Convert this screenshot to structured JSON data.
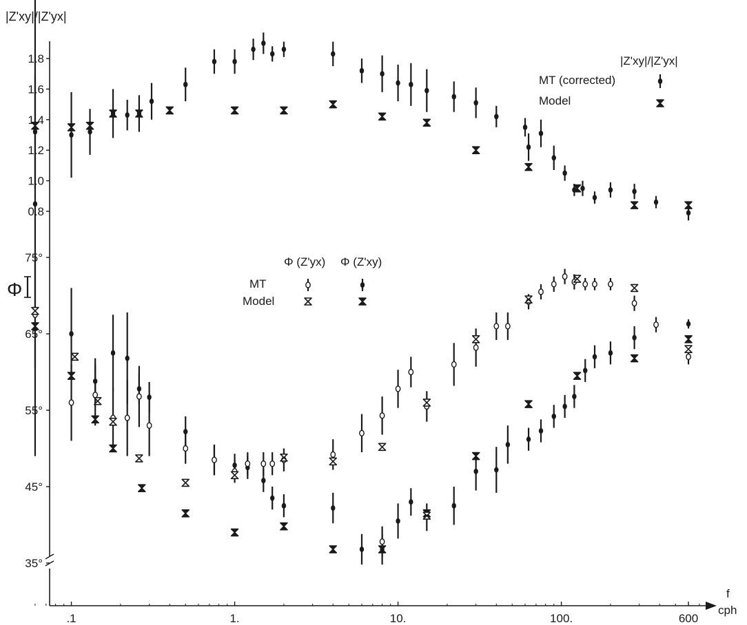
{
  "colors": {
    "ink": "#1a1a1a",
    "paper": "#ffffff"
  },
  "chart_data": [
    {
      "type": "scatter",
      "title": "",
      "ylabel": "|Z'xy|/|Z'yx|",
      "xlabel": "f / cph",
      "xscale": "log",
      "xlim": [
        0.055,
        750
      ],
      "ylim": [
        0.75,
        2.0
      ],
      "x_ticks": [
        0.1,
        1,
        10,
        100,
        600
      ],
      "x_tick_labels": [
        ".1",
        "1.",
        "10.",
        "100.",
        "600"
      ],
      "y_ticks": [
        0.8,
        1.0,
        1.2,
        1.4,
        1.6,
        1.8
      ],
      "y_tick_labels": [
        "0.8",
        "1.0",
        "1.2",
        "1.4",
        "1.6",
        "1.8"
      ],
      "legend_title": "|Z'xy|/|Z'yx|",
      "legend_position": "top-right",
      "series": [
        {
          "name": "MT (corrected)",
          "marker": "filled-dot-errorbar",
          "points": [
            {
              "x": 0.06,
              "y": 1.32,
              "e": 0.37
            },
            {
              "x": 0.1,
              "y": 1.3,
              "e": 0.28
            },
            {
              "x": 0.13,
              "y": 1.32,
              "e": 0.15
            },
            {
              "x": 0.18,
              "y": 1.44,
              "e": 0.16
            },
            {
              "x": 0.22,
              "y": 1.43,
              "e": 0.1
            },
            {
              "x": 0.26,
              "y": 1.44,
              "e": 0.12
            },
            {
              "x": 0.31,
              "y": 1.52,
              "e": 0.12
            },
            {
              "x": 0.5,
              "y": 1.63,
              "e": 0.11
            },
            {
              "x": 0.75,
              "y": 1.78,
              "e": 0.08
            },
            {
              "x": 1.0,
              "y": 1.78,
              "e": 0.08
            },
            {
              "x": 1.3,
              "y": 1.86,
              "e": 0.07
            },
            {
              "x": 1.5,
              "y": 1.9,
              "e": 0.07
            },
            {
              "x": 1.7,
              "y": 1.83,
              "e": 0.05
            },
            {
              "x": 2.0,
              "y": 1.86,
              "e": 0.05
            },
            {
              "x": 4.0,
              "y": 1.83,
              "e": 0.08
            },
            {
              "x": 6.0,
              "y": 1.72,
              "e": 0.08
            },
            {
              "x": 8.0,
              "y": 1.7,
              "e": 0.12
            },
            {
              "x": 10,
              "y": 1.64,
              "e": 0.12
            },
            {
              "x": 12,
              "y": 1.63,
              "e": 0.14
            },
            {
              "x": 15,
              "y": 1.59,
              "e": 0.14
            },
            {
              "x": 22,
              "y": 1.55,
              "e": 0.1
            },
            {
              "x": 30,
              "y": 1.51,
              "e": 0.1
            },
            {
              "x": 40,
              "y": 1.42,
              "e": 0.07
            },
            {
              "x": 60,
              "y": 1.35,
              "e": 0.06
            },
            {
              "x": 63,
              "y": 1.22,
              "e": 0.09
            },
            {
              "x": 75,
              "y": 1.31,
              "e": 0.09
            },
            {
              "x": 90,
              "y": 1.15,
              "e": 0.08
            },
            {
              "x": 105,
              "y": 1.05,
              "e": 0.05
            },
            {
              "x": 120,
              "y": 0.94,
              "e": 0.04
            },
            {
              "x": 135,
              "y": 0.95,
              "e": 0.05
            },
            {
              "x": 160,
              "y": 0.89,
              "e": 0.04
            },
            {
              "x": 200,
              "y": 0.94,
              "e": 0.05
            },
            {
              "x": 280,
              "y": 0.93,
              "e": 0.05
            },
            {
              "x": 380,
              "y": 0.86,
              "e": 0.04
            },
            {
              "x": 600,
              "y": 0.79,
              "e": 0.05
            }
          ]
        },
        {
          "name": "Model",
          "marker": "hourglass",
          "points": [
            {
              "x": 0.06,
              "y": 1.36
            },
            {
              "x": 0.1,
              "y": 1.35
            },
            {
              "x": 0.13,
              "y": 1.36
            },
            {
              "x": 0.18,
              "y": 1.44
            },
            {
              "x": 0.26,
              "y": 1.44
            },
            {
              "x": 0.4,
              "y": 1.46
            },
            {
              "x": 1.0,
              "y": 1.46
            },
            {
              "x": 2.0,
              "y": 1.46
            },
            {
              "x": 4.0,
              "y": 1.5
            },
            {
              "x": 8.0,
              "y": 1.42
            },
            {
              "x": 15,
              "y": 1.38
            },
            {
              "x": 30,
              "y": 1.2
            },
            {
              "x": 63,
              "y": 1.09
            },
            {
              "x": 125,
              "y": 0.95
            },
            {
              "x": 280,
              "y": 0.84
            },
            {
              "x": 600,
              "y": 0.84
            }
          ]
        }
      ]
    },
    {
      "type": "scatter",
      "title": "",
      "ylabel": "Φ",
      "xlabel": "f / cph",
      "xscale": "log",
      "xlim": [
        0.055,
        750
      ],
      "ylim": [
        33,
        78
      ],
      "y_ticks": [
        35,
        45,
        55,
        65,
        75
      ],
      "y_tick_labels": [
        "35°",
        "45°",
        "55°",
        "65°",
        "75°"
      ],
      "legend_headers": [
        "Φ (Z'yx)",
        "Φ (Z'xy)"
      ],
      "legend_rows": [
        "MT",
        "Model"
      ],
      "legend_position": "top-center",
      "series": [
        {
          "name": "Φ (Z'xy) MT",
          "marker": "filled-dot-errorbar",
          "points": [
            {
              "x": 0.06,
              "y": 82,
              "e": 33
            },
            {
              "x": 0.1,
              "y": 65,
              "e": 6
            },
            {
              "x": 0.14,
              "y": 58.8,
              "e": 3
            },
            {
              "x": 0.18,
              "y": 62.5,
              "e": 5
            },
            {
              "x": 0.22,
              "y": 61.8,
              "e": 6
            },
            {
              "x": 0.26,
              "y": 57.8,
              "e": 2
            },
            {
              "x": 0.3,
              "y": 56.7,
              "e": 2
            },
            {
              "x": 0.5,
              "y": 52.2,
              "e": 2
            },
            {
              "x": 0.75,
              "y": 48.5,
              "e": 2
            },
            {
              "x": 1.0,
              "y": 47.8,
              "e": 1.5
            },
            {
              "x": 1.2,
              "y": 47.5,
              "e": 1.5
            },
            {
              "x": 1.5,
              "y": 45.8,
              "e": 1.5
            },
            {
              "x": 1.7,
              "y": 43.5,
              "e": 1.5
            },
            {
              "x": 2.0,
              "y": 42.5,
              "e": 1.5
            },
            {
              "x": 4.0,
              "y": 42.2,
              "e": 2
            },
            {
              "x": 6.0,
              "y": 36.8,
              "e": 2
            },
            {
              "x": 8.0,
              "y": 36.8,
              "e": 2
            },
            {
              "x": 10,
              "y": 40.5,
              "e": 2.3
            },
            {
              "x": 12,
              "y": 43,
              "e": 1.8
            },
            {
              "x": 15,
              "y": 41,
              "e": 1.8
            },
            {
              "x": 22,
              "y": 42.5,
              "e": 2.5
            },
            {
              "x": 30,
              "y": 47,
              "e": 2.5
            },
            {
              "x": 40,
              "y": 47.2,
              "e": 3
            },
            {
              "x": 47,
              "y": 50.5,
              "e": 2.5
            },
            {
              "x": 63,
              "y": 51.2,
              "e": 1.5
            },
            {
              "x": 75,
              "y": 52.3,
              "e": 1.5
            },
            {
              "x": 90,
              "y": 54.2,
              "e": 1.5
            },
            {
              "x": 105,
              "y": 55.5,
              "e": 1.5
            },
            {
              "x": 120,
              "y": 56.8,
              "e": 1.5
            },
            {
              "x": 140,
              "y": 60.2,
              "e": 1.5
            },
            {
              "x": 160,
              "y": 62,
              "e": 1.5
            },
            {
              "x": 200,
              "y": 62.5,
              "e": 1.5
            },
            {
              "x": 280,
              "y": 64.5,
              "e": 1.5
            },
            {
              "x": 600,
              "y": 66.3,
              "e": 0.6
            }
          ]
        },
        {
          "name": "Φ (Z'yx) MT",
          "marker": "open-dot-errorbar",
          "points": [
            {
              "x": 0.06,
              "y": 67.5,
              "e": 7
            },
            {
              "x": 0.1,
              "y": 56,
              "e": 5
            },
            {
              "x": 0.14,
              "y": 57,
              "e": 4
            },
            {
              "x": 0.18,
              "y": 54,
              "e": 4
            },
            {
              "x": 0.22,
              "y": 54,
              "e": 5
            },
            {
              "x": 0.26,
              "y": 56.8,
              "e": 4
            },
            {
              "x": 0.3,
              "y": 53,
              "e": 4
            },
            {
              "x": 0.5,
              "y": 50,
              "e": 2
            },
            {
              "x": 0.75,
              "y": 48.5,
              "e": 2
            },
            {
              "x": 1.0,
              "y": 47,
              "e": 1.5
            },
            {
              "x": 1.2,
              "y": 48,
              "e": 1.5
            },
            {
              "x": 1.5,
              "y": 48,
              "e": 1.5
            },
            {
              "x": 1.7,
              "y": 48,
              "e": 1.5
            },
            {
              "x": 2.0,
              "y": 48.5,
              "e": 1.5
            },
            {
              "x": 4.0,
              "y": 49.2,
              "e": 2
            },
            {
              "x": 6.0,
              "y": 52,
              "e": 2.5
            },
            {
              "x": 8.0,
              "y": 54.3,
              "e": 2.5
            },
            {
              "x": 8.0,
              "y": 37.8,
              "e": 2
            },
            {
              "x": 10,
              "y": 57.8,
              "e": 2.5
            },
            {
              "x": 12,
              "y": 60,
              "e": 2
            },
            {
              "x": 15,
              "y": 55.5,
              "e": 2
            },
            {
              "x": 22,
              "y": 61,
              "e": 2.8
            },
            {
              "x": 30,
              "y": 63.2,
              "e": 2.5
            },
            {
              "x": 40,
              "y": 66,
              "e": 1.8
            },
            {
              "x": 47,
              "y": 66,
              "e": 1.8
            },
            {
              "x": 63,
              "y": 69.2,
              "e": 1
            },
            {
              "x": 75,
              "y": 70.5,
              "e": 1
            },
            {
              "x": 90,
              "y": 71.5,
              "e": 1
            },
            {
              "x": 105,
              "y": 72.5,
              "e": 1
            },
            {
              "x": 120,
              "y": 71.8,
              "e": 1
            },
            {
              "x": 140,
              "y": 71.5,
              "e": 0.8
            },
            {
              "x": 160,
              "y": 71.5,
              "e": 0.8
            },
            {
              "x": 200,
              "y": 71.5,
              "e": 0.8
            },
            {
              "x": 280,
              "y": 69,
              "e": 1
            },
            {
              "x": 380,
              "y": 66.2,
              "e": 1
            },
            {
              "x": 600,
              "y": 62,
              "e": 1
            }
          ]
        },
        {
          "name": "Φ (Z'xy) Model",
          "marker": "hourglass",
          "points": [
            {
              "x": 0.06,
              "y": 66
            },
            {
              "x": 0.1,
              "y": 59.5
            },
            {
              "x": 0.14,
              "y": 53.8
            },
            {
              "x": 0.18,
              "y": 50
            },
            {
              "x": 0.27,
              "y": 44.8
            },
            {
              "x": 0.5,
              "y": 41.5
            },
            {
              "x": 1.0,
              "y": 39
            },
            {
              "x": 2.0,
              "y": 39.8
            },
            {
              "x": 4.0,
              "y": 36.8
            },
            {
              "x": 8.0,
              "y": 36.8
            },
            {
              "x": 15,
              "y": 41.5
            },
            {
              "x": 30,
              "y": 49
            },
            {
              "x": 63,
              "y": 55.8
            },
            {
              "x": 125,
              "y": 59.5
            },
            {
              "x": 280,
              "y": 61.8
            },
            {
              "x": 600,
              "y": 64.3
            }
          ]
        },
        {
          "name": "Φ (Z'yx) Model",
          "marker": "open-hourglass",
          "points": [
            {
              "x": 0.06,
              "y": 68
            },
            {
              "x": 0.105,
              "y": 62
            },
            {
              "x": 0.145,
              "y": 56.2
            },
            {
              "x": 0.18,
              "y": 53.5
            },
            {
              "x": 0.26,
              "y": 48.7
            },
            {
              "x": 0.5,
              "y": 45.5
            },
            {
              "x": 1.0,
              "y": 46.5
            },
            {
              "x": 2.0,
              "y": 48.8
            },
            {
              "x": 4.0,
              "y": 48.3
            },
            {
              "x": 8.0,
              "y": 50.2
            },
            {
              "x": 15,
              "y": 56
            },
            {
              "x": 15,
              "y": 41.2
            },
            {
              "x": 30,
              "y": 64.3
            },
            {
              "x": 63,
              "y": 69.5
            },
            {
              "x": 125,
              "y": 72.2
            },
            {
              "x": 280,
              "y": 71
            },
            {
              "x": 600,
              "y": 63
            }
          ]
        }
      ]
    }
  ],
  "labels": {
    "top_ylabel": "|Z'xy|/|Z'yx|",
    "legend1_title": "|Z'xy|/|Z'yx|",
    "legend1_mt": "MT (corrected)",
    "legend1_model": "Model",
    "phi_symbol": "Φ",
    "legend2_head_yx": "Φ (Z'yx)",
    "legend2_head_xy": "Φ (Z'xy)",
    "legend2_mt": "MT",
    "legend2_model": "Model",
    "x_unit_top": "f",
    "x_unit_bottom": "cph"
  }
}
